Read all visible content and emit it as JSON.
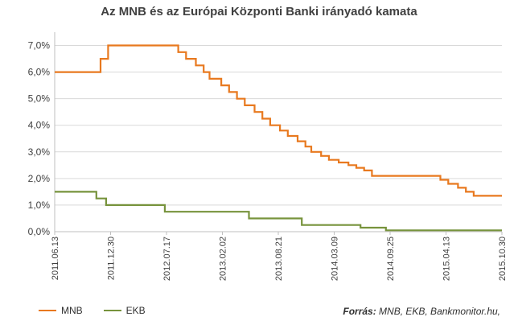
{
  "chart_data": {
    "type": "line",
    "title": "Az MNB és az Európai Központi Banki irányadó kamata",
    "xlabel": "",
    "ylabel": "",
    "x_ticks": [
      "2011.06.13",
      "2011.12.30",
      "2012.07.17",
      "2013.02.02",
      "2013.08.21",
      "2014.03.09",
      "2014.09.25",
      "2015.04.13",
      "2015.10.30"
    ],
    "x_range": [
      "2011.06.13",
      "2015.10.30"
    ],
    "y_ticks": [
      "0,0%",
      "1,0%",
      "2,0%",
      "3,0%",
      "4,0%",
      "5,0%",
      "6,0%",
      "7,0%"
    ],
    "ylim": [
      0,
      7.5
    ],
    "grid": "horizontal",
    "legend_position": "bottom-left",
    "series": [
      {
        "name": "MNB",
        "color": "#e8791f",
        "step": true,
        "points": [
          [
            "2011-06-13",
            6.0
          ],
          [
            "2011-11-24",
            6.5
          ],
          [
            "2011-12-21",
            7.0
          ],
          [
            "2012-08-28",
            6.75
          ],
          [
            "2012-09-25",
            6.5
          ],
          [
            "2012-10-30",
            6.25
          ],
          [
            "2012-11-27",
            6.0
          ],
          [
            "2012-12-18",
            5.75
          ],
          [
            "2013-01-29",
            5.5
          ],
          [
            "2013-02-26",
            5.25
          ],
          [
            "2013-03-26",
            5.0
          ],
          [
            "2013-04-23",
            4.75
          ],
          [
            "2013-05-28",
            4.5
          ],
          [
            "2013-06-25",
            4.25
          ],
          [
            "2013-07-23",
            4.0
          ],
          [
            "2013-08-27",
            3.8
          ],
          [
            "2013-09-24",
            3.6
          ],
          [
            "2013-10-29",
            3.4
          ],
          [
            "2013-11-26",
            3.2
          ],
          [
            "2013-12-17",
            3.0
          ],
          [
            "2014-01-21",
            2.85
          ],
          [
            "2014-02-18",
            2.7
          ],
          [
            "2014-03-25",
            2.6
          ],
          [
            "2014-04-29",
            2.5
          ],
          [
            "2014-05-27",
            2.4
          ],
          [
            "2014-06-24",
            2.3
          ],
          [
            "2014-07-22",
            2.1
          ],
          [
            "2015-03-24",
            1.95
          ],
          [
            "2015-04-21",
            1.8
          ],
          [
            "2015-05-26",
            1.65
          ],
          [
            "2015-06-23",
            1.5
          ],
          [
            "2015-07-21",
            1.35
          ],
          [
            "2015-10-30",
            1.35
          ]
        ]
      },
      {
        "name": "EKB",
        "color": "#77933c",
        "step": true,
        "points": [
          [
            "2011-06-13",
            1.5
          ],
          [
            "2011-11-09",
            1.25
          ],
          [
            "2011-12-14",
            1.0
          ],
          [
            "2012-07-11",
            0.75
          ],
          [
            "2013-05-08",
            0.5
          ],
          [
            "2013-11-13",
            0.25
          ],
          [
            "2014-06-11",
            0.15
          ],
          [
            "2014-09-10",
            0.05
          ],
          [
            "2015-10-30",
            0.05
          ]
        ]
      }
    ],
    "source_label": "Forrás:",
    "source_text": "MNB, EKB, Bankmonitor.hu,"
  }
}
